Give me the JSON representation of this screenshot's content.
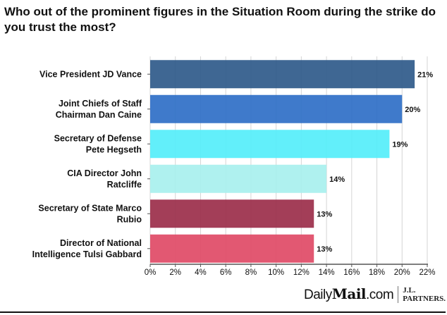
{
  "chart_data": {
    "type": "bar",
    "orientation": "horizontal",
    "title": "Who out of the prominent figures in the Situation Room during the strike do you trust the most?",
    "categories": [
      [
        "Vice President JD Vance"
      ],
      [
        "Joint Chiefs of Staff",
        "Chairman Dan Caine"
      ],
      [
        "Secretary of Defense",
        "Pete Hegseth"
      ],
      [
        "CIA Director John",
        "Ratcliffe"
      ],
      [
        "Secretary of State Marco",
        "Rubio"
      ],
      [
        "Director of National",
        "Intelligence Tulsi Gabbard"
      ]
    ],
    "values": [
      21,
      20,
      19,
      14,
      13,
      13
    ],
    "data_labels": [
      "21%",
      "20%",
      "19%",
      "14%",
      "13%",
      "13%"
    ],
    "colors": [
      "#2f5a8a",
      "#2f6fc7",
      "#55eefa",
      "#a8f0ee",
      "#9b2e4a",
      "#e04a66"
    ],
    "xlim": [
      0,
      22
    ],
    "xticks": [
      "0%",
      "2%",
      "4%",
      "6%",
      "8%",
      "10%",
      "12%",
      "14%",
      "16%",
      "18%",
      "20%",
      "22%"
    ],
    "grid": true,
    "legend": "none"
  },
  "branding": {
    "publisher": "DailyMail.com",
    "publisher_parts": [
      "Daily",
      "Mail",
      ".com"
    ],
    "partner": [
      "J.L.",
      "PARTNERS."
    ]
  }
}
